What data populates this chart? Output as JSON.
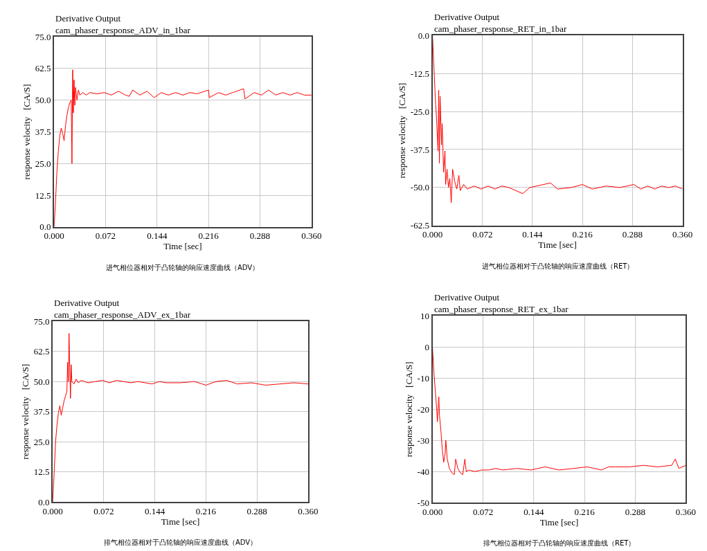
{
  "chart_data": [
    {
      "type": "line",
      "title": "Derivative Output",
      "subtitle": "cam_phaser_response_ADV_in_1bar",
      "xlabel": "Time [sec]",
      "ylabel": "response velocity   [CA/S]",
      "annotations": [
        "进气相位器相对于凸轮轴的响应速度曲线（ADV）"
      ],
      "grid": true,
      "line_style": "solid",
      "xlim": [
        0,
        0.36
      ],
      "xticks": [
        {
          "value": 0,
          "label": "0.000"
        },
        {
          "value": 0.072,
          "label": "0.072"
        },
        {
          "value": 0.144,
          "label": "0.144"
        },
        {
          "value": 0.216,
          "label": "0.216"
        },
        {
          "value": 0.288,
          "label": "0.288"
        },
        {
          "value": 0.36,
          "label": "0.360"
        }
      ],
      "ylim": [
        0,
        75
      ],
      "yticks": [
        {
          "value": 0,
          "label": "0.0"
        },
        {
          "value": 12.5,
          "label": "12.5"
        },
        {
          "value": 25,
          "label": "25.0"
        },
        {
          "value": 37.5,
          "label": "37.5"
        },
        {
          "value": 50,
          "label": "50.0"
        },
        {
          "value": 62.5,
          "label": "62.5"
        },
        {
          "value": 75,
          "label": "75.0"
        }
      ],
      "series": [
        {
          "color": "#ff0000",
          "x": [
            0,
            0.002,
            0.004,
            0.006,
            0.008,
            0.01,
            0.012,
            0.014,
            0.016,
            0.018,
            0.02,
            0.022,
            0.024,
            0.025,
            0.026,
            0.027,
            0.028,
            0.029,
            0.03,
            0.032,
            0.034,
            0.036,
            0.04,
            0.045,
            0.05,
            0.06,
            0.07,
            0.08,
            0.09,
            0.1,
            0.105,
            0.11,
            0.12,
            0.13,
            0.14,
            0.15,
            0.16,
            0.17,
            0.18,
            0.19,
            0.2,
            0.216,
            0.217,
            0.23,
            0.24,
            0.25,
            0.265,
            0.267,
            0.28,
            0.29,
            0.3,
            0.31,
            0.32,
            0.33,
            0.34,
            0.35,
            0.36
          ],
          "values": [
            0,
            10,
            22,
            30,
            36,
            39,
            37,
            34,
            40,
            44,
            47,
            49,
            50,
            25,
            62,
            45,
            58,
            48,
            55,
            50,
            54,
            52,
            53,
            52,
            53,
            52.5,
            53,
            52,
            53.5,
            52,
            51.5,
            54,
            52,
            53.5,
            51,
            53,
            52,
            53,
            52,
            53,
            52.5,
            54,
            51,
            53,
            52,
            53,
            54.5,
            50.5,
            53,
            52,
            54,
            52,
            53,
            52,
            53,
            52,
            52
          ]
        }
      ]
    },
    {
      "type": "line",
      "title": "Derivative Output",
      "subtitle": "cam_phaser_response_RET_in_1bar",
      "xlabel": "Time [sec]",
      "ylabel": "response velocity   [CA/S]",
      "annotations": [
        "进气相位器相对于凸轮轴的响应速度曲线（RET）"
      ],
      "grid": true,
      "line_style": "solid",
      "xlim": [
        0,
        0.36
      ],
      "xticks": [
        {
          "value": 0,
          "label": "0.000"
        },
        {
          "value": 0.072,
          "label": "0.072"
        },
        {
          "value": 0.144,
          "label": "0.144"
        },
        {
          "value": 0.216,
          "label": "0.216"
        },
        {
          "value": 0.288,
          "label": "0.288"
        },
        {
          "value": 0.36,
          "label": "0.360"
        }
      ],
      "ylim": [
        -62.5,
        0
      ],
      "yticks": [
        {
          "value": -62.5,
          "label": "-62.5"
        },
        {
          "value": -50,
          "label": "-50.0"
        },
        {
          "value": -37.5,
          "label": "-37.5"
        },
        {
          "value": -25,
          "label": "-25.0"
        },
        {
          "value": -12.5,
          "label": "-12.5"
        },
        {
          "value": 0,
          "label": "0.0"
        }
      ],
      "series": [
        {
          "color": "#ff0000",
          "x": [
            0,
            0.002,
            0.004,
            0.006,
            0.008,
            0.009,
            0.01,
            0.011,
            0.013,
            0.014,
            0.016,
            0.018,
            0.019,
            0.021,
            0.023,
            0.025,
            0.027,
            0.029,
            0.032,
            0.035,
            0.038,
            0.04,
            0.045,
            0.05,
            0.06,
            0.07,
            0.08,
            0.09,
            0.1,
            0.11,
            0.13,
            0.14,
            0.15,
            0.17,
            0.18,
            0.2,
            0.216,
            0.23,
            0.25,
            0.27,
            0.29,
            0.3,
            0.31,
            0.32,
            0.33,
            0.34,
            0.35,
            0.36
          ],
          "values": [
            0,
            -10,
            -20,
            -28,
            -38,
            -18,
            -42,
            -20,
            -36,
            -29,
            -45,
            -38,
            -49,
            -44,
            -50,
            -47,
            -55,
            -44,
            -48,
            -50.5,
            -46,
            -51,
            -49,
            -50.5,
            -49.5,
            -50.5,
            -49.5,
            -50.5,
            -49.5,
            -50,
            -52,
            -50,
            -49.5,
            -48.5,
            -50.5,
            -50,
            -49,
            -50.5,
            -49.5,
            -50,
            -49,
            -50.5,
            -49.5,
            -50.5,
            -49.5,
            -50,
            -49.5,
            -50.5
          ]
        }
      ]
    },
    {
      "type": "line",
      "title": "Derivative Output",
      "subtitle": "cam_phaser_response_ADV_ex_1bar",
      "xlabel": "Time [sec]",
      "ylabel": "response velocity   [CA/S]",
      "annotations": [
        "排气相位器相对于凸轮轴的响应速度曲线（ADV）"
      ],
      "grid": true,
      "line_style": "solid",
      "xlim": [
        0,
        0.36
      ],
      "xticks": [
        {
          "value": 0,
          "label": "0.000"
        },
        {
          "value": 0.072,
          "label": "0.072"
        },
        {
          "value": 0.144,
          "label": "0.144"
        },
        {
          "value": 0.216,
          "label": "0.216"
        },
        {
          "value": 0.288,
          "label": "0.288"
        },
        {
          "value": 0.36,
          "label": "0.360"
        }
      ],
      "ylim": [
        0,
        75
      ],
      "yticks": [
        {
          "value": 0,
          "label": "0.0"
        },
        {
          "value": 12.5,
          "label": "12.5"
        },
        {
          "value": 25,
          "label": "25.0"
        },
        {
          "value": 37.5,
          "label": "37.5"
        },
        {
          "value": 50,
          "label": "50.0"
        },
        {
          "value": 62.5,
          "label": "62.5"
        },
        {
          "value": 75,
          "label": "75.0"
        }
      ],
      "series": [
        {
          "color": "#ff0000",
          "x": [
            0,
            0.002,
            0.004,
            0.006,
            0.008,
            0.01,
            0.012,
            0.014,
            0.016,
            0.018,
            0.02,
            0.021,
            0.022,
            0.023,
            0.024,
            0.025,
            0.026,
            0.027,
            0.03,
            0.033,
            0.036,
            0.04,
            0.05,
            0.06,
            0.07,
            0.08,
            0.09,
            0.1,
            0.11,
            0.12,
            0.13,
            0.14,
            0.15,
            0.16,
            0.18,
            0.2,
            0.216,
            0.23,
            0.245,
            0.26,
            0.28,
            0.3,
            0.32,
            0.34,
            0.36
          ],
          "values": [
            0,
            12,
            25,
            32,
            37,
            40,
            36,
            39,
            42,
            44,
            46,
            58,
            50,
            70,
            55,
            43,
            57,
            50,
            49,
            51,
            49.5,
            50.5,
            49.5,
            50,
            50.5,
            49.5,
            50.5,
            50,
            49.5,
            50,
            49.5,
            49,
            50,
            49.5,
            49.5,
            50,
            48.5,
            50,
            50.5,
            49,
            49.5,
            48.5,
            49,
            49.5,
            49
          ]
        }
      ]
    },
    {
      "type": "line",
      "title": "Derivative Output",
      "subtitle": "cam_phaser_response_RET_ex_1bar",
      "xlabel": "Time [sec]",
      "ylabel": "response velocity   [CA/S]",
      "annotations": [
        "排气相位器相对于凸轮轴的响应速度曲线（RET）"
      ],
      "grid": true,
      "line_style": "solid",
      "xlim": [
        0,
        0.36
      ],
      "xticks": [
        {
          "value": 0,
          "label": "0.000"
        },
        {
          "value": 0.072,
          "label": "0.072"
        },
        {
          "value": 0.144,
          "label": "0.144"
        },
        {
          "value": 0.216,
          "label": "0.216"
        },
        {
          "value": 0.288,
          "label": "0.288"
        },
        {
          "value": 0.36,
          "label": "0.360"
        }
      ],
      "ylim": [
        -50,
        10
      ],
      "yticks": [
        -50,
        -40,
        -30,
        -20,
        -10,
        0,
        10
      ],
      "series": [
        {
          "color": "#ff0000",
          "x": [
            0,
            0.002,
            0.004,
            0.006,
            0.007,
            0.008,
            0.009,
            0.01,
            0.012,
            0.014,
            0.016,
            0.018,
            0.019,
            0.021,
            0.024,
            0.028,
            0.031,
            0.033,
            0.036,
            0.04,
            0.043,
            0.046,
            0.048,
            0.052,
            0.06,
            0.07,
            0.08,
            0.09,
            0.1,
            0.12,
            0.14,
            0.16,
            0.18,
            0.2,
            0.22,
            0.24,
            0.25,
            0.26,
            0.28,
            0.3,
            0.32,
            0.34,
            0.345,
            0.35,
            0.36
          ],
          "values": [
            0,
            -8,
            -14,
            -20,
            -24,
            -20,
            -16,
            -22,
            -27,
            -33,
            -37,
            -34,
            -30,
            -36,
            -39,
            -40.5,
            -41,
            -36,
            -39,
            -40.5,
            -41,
            -36,
            -40,
            -39.5,
            -40,
            -39.5,
            -39.5,
            -39,
            -39.5,
            -39,
            -39.5,
            -38.5,
            -39.5,
            -39,
            -38.5,
            -39.5,
            -38.5,
            -38.5,
            -38.5,
            -38,
            -38.5,
            -38,
            -36,
            -39,
            -38
          ]
        }
      ]
    }
  ]
}
